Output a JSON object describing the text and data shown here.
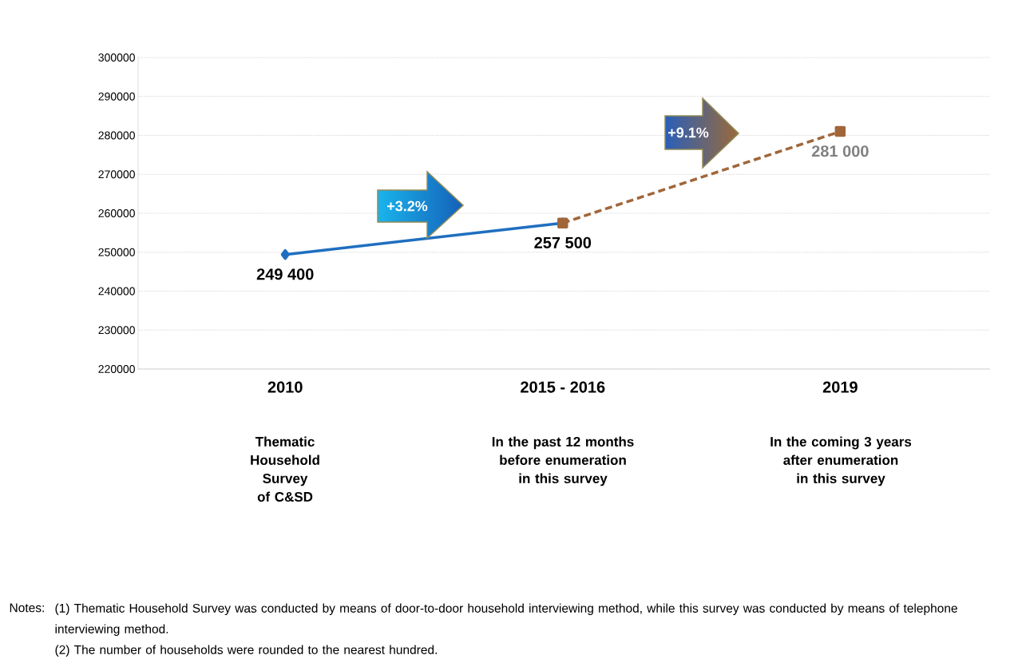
{
  "chart_data": {
    "type": "line",
    "categories": [
      "2010",
      "2015 - 2016",
      "2019"
    ],
    "series": [
      {
        "color": "#1f6fc0",
        "values": [
          249400,
          257500,
          null
        ],
        "marker": "diamond",
        "line_style": "solid",
        "value_labels": [
          "249 400",
          "257 500",
          null
        ]
      },
      {
        "color": "#a0663a",
        "values": [
          null,
          257500,
          281000
        ],
        "marker": "square",
        "line_style": "dashed",
        "value_labels": [
          null,
          null,
          "281 000"
        ]
      }
    ],
    "ylim": [
      220000,
      300000
    ],
    "yticks": [
      220000,
      230000,
      240000,
      250000,
      260000,
      270000,
      280000,
      290000,
      300000
    ],
    "grid": "y",
    "annotations": [
      "Thematic Household Survey of C&SD",
      "In the past 12 months before enumeration in this survey",
      "In the coming 3 years after enumeration in this survey",
      "+3.2%",
      "+9.1%",
      "Notes:",
      "(1) Thematic Household Survey was conducted by means of door-to-door household interviewing method, while this survey was conducted by means of telephone interviewing method.",
      "(2) The number of households were rounded to the nearest hundred."
    ]
  }
}
